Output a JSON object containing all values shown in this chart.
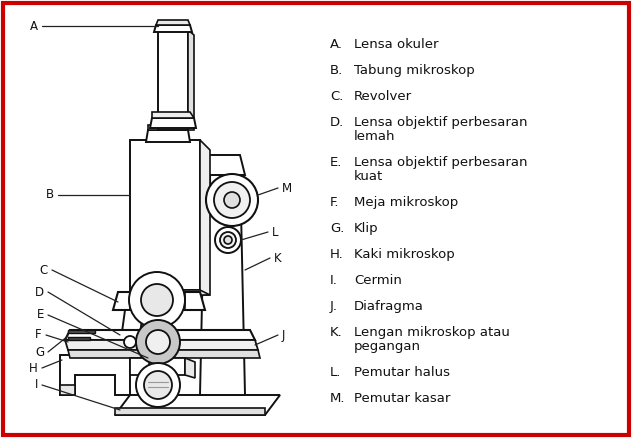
{
  "border_color": "#cc0000",
  "background_color": "#ffffff",
  "legend_items": [
    {
      "label": "A.",
      "text": "Lensa okuler"
    },
    {
      "label": "B.",
      "text": "Tabung mikroskop"
    },
    {
      "label": "C.",
      "text": "Revolver"
    },
    {
      "label": "D.",
      "text": "Lensa objektif perbesaran\nlemah"
    },
    {
      "label": "E.",
      "text": "Lensa objektif perbesaran\nkuat"
    },
    {
      "label": "F.",
      "text": "Meja mikroskop"
    },
    {
      "label": "G.",
      "text": "Klip"
    },
    {
      "label": "H.",
      "text": "Kaki mikroskop"
    },
    {
      "label": "I.",
      "text": "Cermin"
    },
    {
      "label": "J.",
      "text": "Diafragma"
    },
    {
      "label": "K.",
      "text": "Lengan mikroskop atau\npegangan"
    },
    {
      "label": "L.",
      "text": "Pemutar halus"
    },
    {
      "label": "M.",
      "text": "Pemutar kasar"
    }
  ],
  "fig_width": 6.32,
  "fig_height": 4.38,
  "dpi": 100
}
